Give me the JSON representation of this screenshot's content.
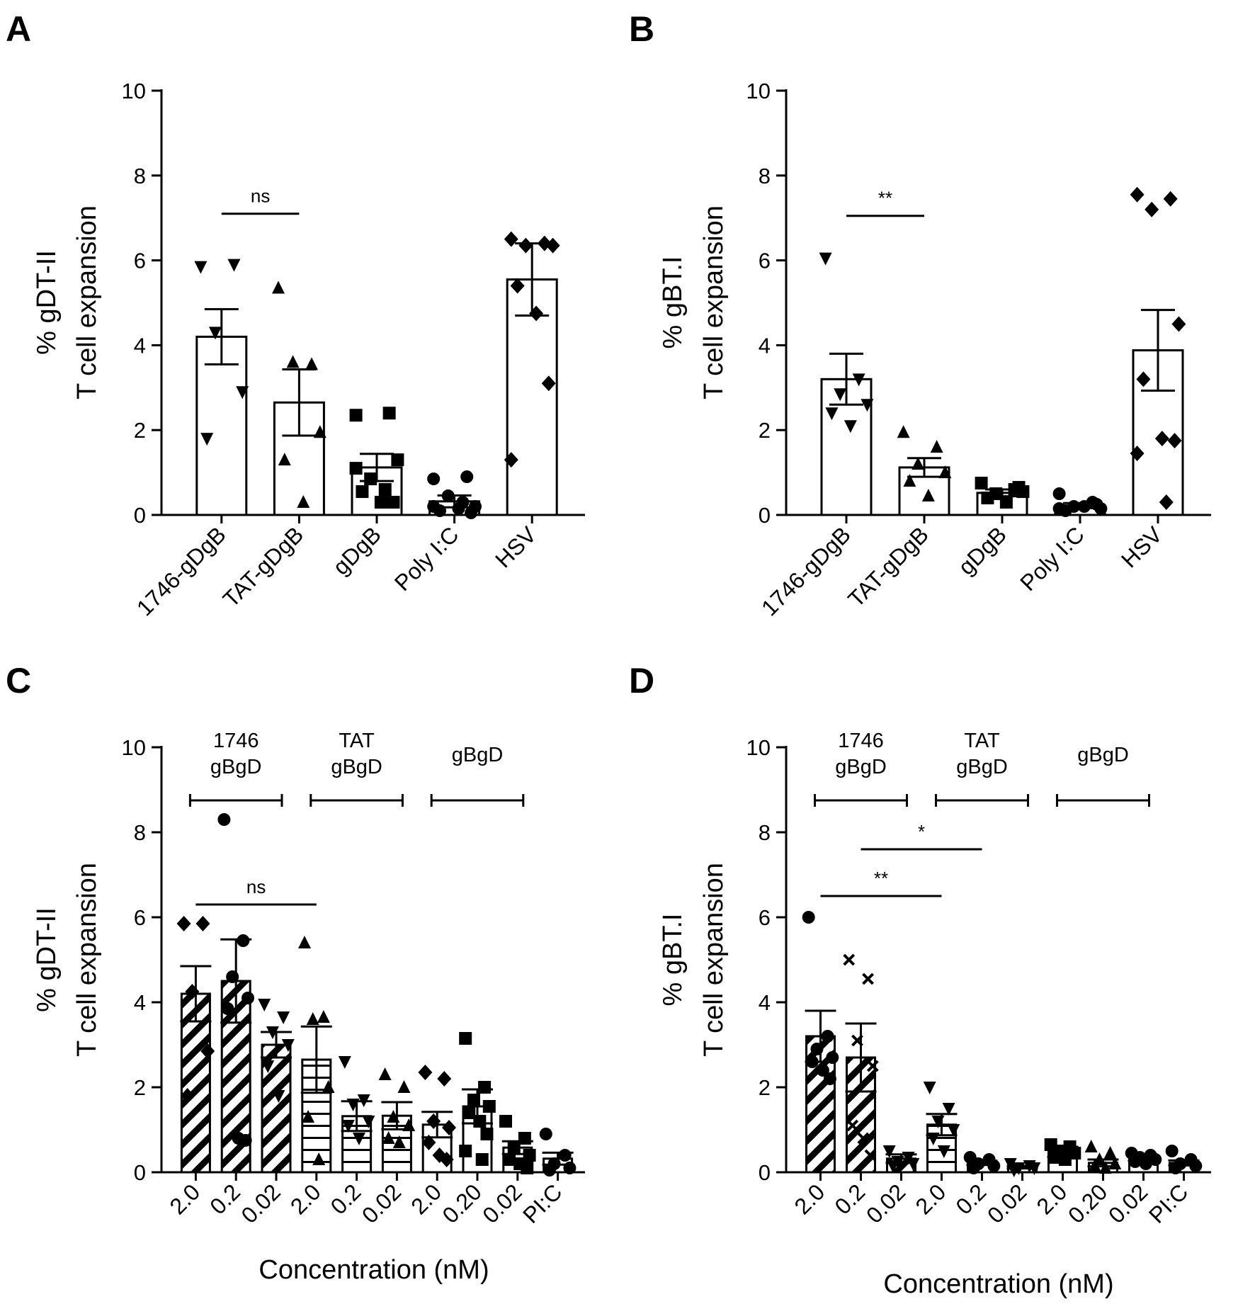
{
  "chart_data": [
    {
      "panel": "A",
      "type": "bar",
      "ylabel": [
        "% gDT-II",
        "T cell expansion"
      ],
      "ylim": [
        0,
        10
      ],
      "yticks": [
        "0",
        "2",
        "4",
        "6",
        "8",
        "10"
      ],
      "categories": [
        "1746-gDgB",
        "TAT-gDgB",
        "gDgB",
        "Poly I:C",
        "HSV"
      ],
      "values": [
        4.2,
        2.65,
        1.12,
        0.32,
        5.55
      ],
      "errors": [
        0.65,
        0.78,
        0.32,
        0.14,
        0.85
      ],
      "markers": [
        "tri-down",
        "tri-up",
        "square",
        "circle",
        "diamond"
      ],
      "points": [
        [
          5.85,
          5.9,
          4.3,
          2.9,
          1.8
        ],
        [
          5.35,
          3.55,
          3.6,
          1.95,
          1.3,
          0.3
        ],
        [
          2.35,
          2.4,
          0.85,
          1.3,
          0.55,
          0.3,
          0.3,
          1.1,
          0.6
        ],
        [
          0.85,
          0.9,
          0.45,
          0.2,
          0.1,
          0.15,
          0.05,
          0.2,
          0.3
        ],
        [
          6.5,
          6.4,
          6.35,
          6.35,
          5.4,
          4.75,
          3.1,
          1.3
        ]
      ],
      "comparisons": [
        {
          "from": 0,
          "to": 1,
          "label": "ns",
          "y": 7.1
        }
      ]
    },
    {
      "panel": "B",
      "type": "bar",
      "ylabel": [
        "% gBT.I",
        "T cell expansion"
      ],
      "ylim": [
        0,
        10
      ],
      "yticks": [
        "0",
        "2",
        "4",
        "6",
        "8",
        "10"
      ],
      "categories": [
        "1746-gDgB",
        "TAT-gDgB",
        "gDgB",
        "Poly I:C",
        "HSV"
      ],
      "values": [
        3.2,
        1.12,
        0.52,
        0.22,
        3.88
      ],
      "errors": [
        0.6,
        0.22,
        0.08,
        0.06,
        0.95
      ],
      "markers": [
        "tri-down",
        "tri-up",
        "square",
        "circle",
        "diamond"
      ],
      "points": [
        [
          6.05,
          3.2,
          2.85,
          2.6,
          2.4,
          2.1
        ],
        [
          1.95,
          1.6,
          1.2,
          1.0,
          0.8,
          0.45
        ],
        [
          0.75,
          0.6,
          0.5,
          0.55,
          0.4,
          0.3,
          0.65
        ],
        [
          0.5,
          0.3,
          0.2,
          0.15,
          0.1,
          0.2,
          0.25,
          0.15
        ],
        [
          7.55,
          7.45,
          7.2,
          4.5,
          3.2,
          1.8,
          1.75,
          1.45,
          0.3
        ]
      ],
      "comparisons": [
        {
          "from": 0,
          "to": 1,
          "label": "**",
          "y": 7.05
        }
      ]
    },
    {
      "panel": "C",
      "type": "bar",
      "ylabel": [
        "% gDT-II",
        "T cell expansion"
      ],
      "xlabel": "Concentration (nM)",
      "ylim": [
        0,
        10
      ],
      "yticks": [
        "0",
        "2",
        "4",
        "6",
        "8",
        "10"
      ],
      "categories": [
        "2.0",
        "0.2",
        "0.02",
        "2.0",
        "0.2",
        "0.02",
        "2.0",
        "0.20",
        "0.02",
        "PI:C"
      ],
      "values": [
        4.2,
        4.5,
        3.0,
        2.65,
        1.32,
        1.33,
        1.12,
        1.55,
        0.58,
        0.32
      ],
      "errors": [
        0.65,
        0.98,
        0.3,
        0.78,
        0.35,
        0.32,
        0.3,
        0.4,
        0.15,
        0.14
      ],
      "patterns": [
        "diag",
        "diag",
        "diag",
        "horiz",
        "horiz",
        "horiz",
        "solid",
        "solid",
        "solid",
        "solid"
      ],
      "markers": [
        "diamond",
        "circle",
        "tri-down",
        "tri-up",
        "tri-down",
        "tri-up",
        "diamond",
        "square",
        "square",
        "circle"
      ],
      "points": [
        [
          5.85,
          5.85,
          4.25,
          2.85,
          1.8
        ],
        [
          8.3,
          5.45,
          4.6,
          4.1,
          3.85,
          0.8,
          0.75
        ],
        [
          3.95,
          3.65,
          3.3,
          3.0,
          2.5,
          1.8
        ],
        [
          5.4,
          3.65,
          3.6,
          2.0,
          1.3,
          0.3
        ],
        [
          2.6,
          1.7,
          1.6,
          1.2,
          1.1,
          0.8
        ],
        [
          2.3,
          2.0,
          1.3,
          1.1,
          0.8,
          0.7
        ],
        [
          2.35,
          2.2,
          1.2,
          1.05,
          0.7,
          0.4,
          0.3
        ],
        [
          3.15,
          2.0,
          1.7,
          1.55,
          1.4,
          1.2,
          0.9,
          0.5,
          0.3
        ],
        [
          1.2,
          0.8,
          0.6,
          0.4,
          0.3,
          0.2,
          0.1
        ],
        [
          0.9,
          0.4,
          0.2,
          0.1,
          0.05
        ]
      ],
      "group_labels": [
        {
          "lines": [
            "1746",
            "gBgD"
          ],
          "from": 0,
          "to": 2
        },
        {
          "lines": [
            "TAT",
            "gBgD"
          ],
          "from": 3,
          "to": 5
        },
        {
          "lines": [
            "gBgD"
          ],
          "from": 6,
          "to": 8
        }
      ],
      "comparisons": [
        {
          "from": 0,
          "to": 3,
          "label": "ns",
          "y": 6.3
        }
      ]
    },
    {
      "panel": "D",
      "type": "bar",
      "ylabel": [
        "% gBT.I",
        "T cell expansion"
      ],
      "xlabel": "Concentration (nM)",
      "ylim": [
        0,
        10
      ],
      "yticks": [
        "0",
        "2",
        "4",
        "6",
        "8",
        "10"
      ],
      "categories": [
        "2.0",
        "0.2",
        "0.02",
        "2.0",
        "0.2",
        "0.02",
        "2.0",
        "0.20",
        "0.02",
        "PI:C"
      ],
      "values": [
        3.2,
        2.7,
        0.32,
        1.12,
        0.22,
        0.12,
        0.48,
        0.22,
        0.32,
        0.22
      ],
      "errors": [
        0.6,
        0.8,
        0.1,
        0.25,
        0.05,
        0.03,
        0.12,
        0.08,
        0.05,
        0.06
      ],
      "patterns": [
        "diag",
        "diag",
        "diag",
        "horiz",
        "horiz",
        "horiz",
        "solid",
        "solid",
        "solid",
        "solid"
      ],
      "markers": [
        "circle",
        "x",
        "tri-down",
        "tri-down",
        "circle",
        "tri-down",
        "square",
        "tri-up",
        "circle",
        "circle"
      ],
      "points": [
        [
          6.0,
          3.2,
          2.9,
          2.7,
          2.6,
          2.4,
          2.2
        ],
        [
          5.0,
          4.55,
          3.1,
          2.5,
          1.1,
          0.8,
          0.4
        ],
        [
          0.5,
          0.35,
          0.25,
          0.2,
          0.15
        ],
        [
          2.0,
          1.5,
          1.2,
          1.0,
          0.8,
          0.5
        ],
        [
          0.35,
          0.3,
          0.2,
          0.15,
          0.1
        ],
        [
          0.2,
          0.15,
          0.1,
          0.1,
          0.05
        ],
        [
          0.65,
          0.6,
          0.5,
          0.45,
          0.35,
          0.3
        ],
        [
          0.6,
          0.45,
          0.3,
          0.2,
          0.15,
          0.1
        ],
        [
          0.45,
          0.4,
          0.35,
          0.3,
          0.25,
          0.2
        ],
        [
          0.5,
          0.3,
          0.2,
          0.15,
          0.1
        ]
      ],
      "group_labels": [
        {
          "lines": [
            "1746",
            "gBgD"
          ],
          "from": 0,
          "to": 2
        },
        {
          "lines": [
            "TAT",
            "gBgD"
          ],
          "from": 3,
          "to": 5
        },
        {
          "lines": [
            "gBgD"
          ],
          "from": 6,
          "to": 8
        }
      ],
      "comparisons": [
        {
          "from": 1,
          "to": 4,
          "label": "*",
          "y": 7.6
        },
        {
          "from": 0,
          "to": 3,
          "label": "**",
          "y": 6.5
        }
      ]
    }
  ]
}
